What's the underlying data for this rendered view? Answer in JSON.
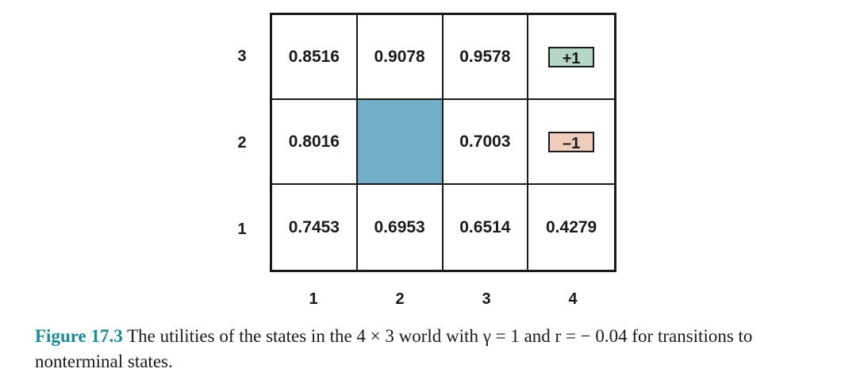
{
  "grid": {
    "rows": [
      {
        "label": "3",
        "cells": [
          {
            "type": "value",
            "text": "0.8516"
          },
          {
            "type": "value",
            "text": "0.9078"
          },
          {
            "type": "value",
            "text": "0.9578"
          },
          {
            "type": "terminal",
            "text": "+1",
            "color": "#b5d6c5"
          }
        ]
      },
      {
        "label": "2",
        "cells": [
          {
            "type": "value",
            "text": "0.8016"
          },
          {
            "type": "wall",
            "text": "",
            "color": "#72aec8"
          },
          {
            "type": "value",
            "text": "0.7003"
          },
          {
            "type": "terminal",
            "text": "–1",
            "color": "#efcdbd"
          }
        ]
      },
      {
        "label": "1",
        "cells": [
          {
            "type": "value",
            "text": "0.7453"
          },
          {
            "type": "value",
            "text": "0.6953"
          },
          {
            "type": "value",
            "text": "0.6514"
          },
          {
            "type": "value",
            "text": "0.4279"
          }
        ]
      }
    ],
    "column_labels": [
      "1",
      "2",
      "3",
      "4"
    ]
  },
  "caption": {
    "figure_label": "Figure 17.3",
    "figure_label_color": "#1a8a94",
    "text": " The utilities of the states in the 4 × 3 world with γ = 1 and r = − 0.04 for transitions to nonterminal states."
  }
}
